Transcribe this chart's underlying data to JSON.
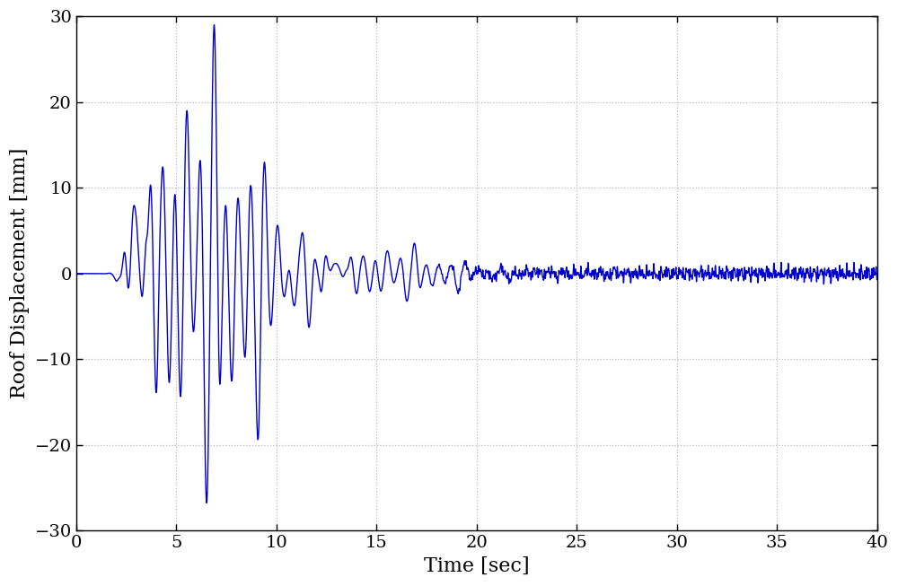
{
  "xlabel": "Time [sec]",
  "ylabel": "Roof Displacement [mm]",
  "xlim": [
    0,
    40
  ],
  "ylim": [
    -30,
    30
  ],
  "xticks": [
    0,
    5,
    10,
    15,
    20,
    25,
    30,
    35,
    40
  ],
  "yticks": [
    -30,
    -20,
    -10,
    0,
    10,
    20,
    30
  ],
  "line_color": "#0000CC",
  "line_width": 1.0,
  "grid_color": "#BBBBBB",
  "figsize": [
    10.0,
    6.53
  ],
  "dpi": 100
}
